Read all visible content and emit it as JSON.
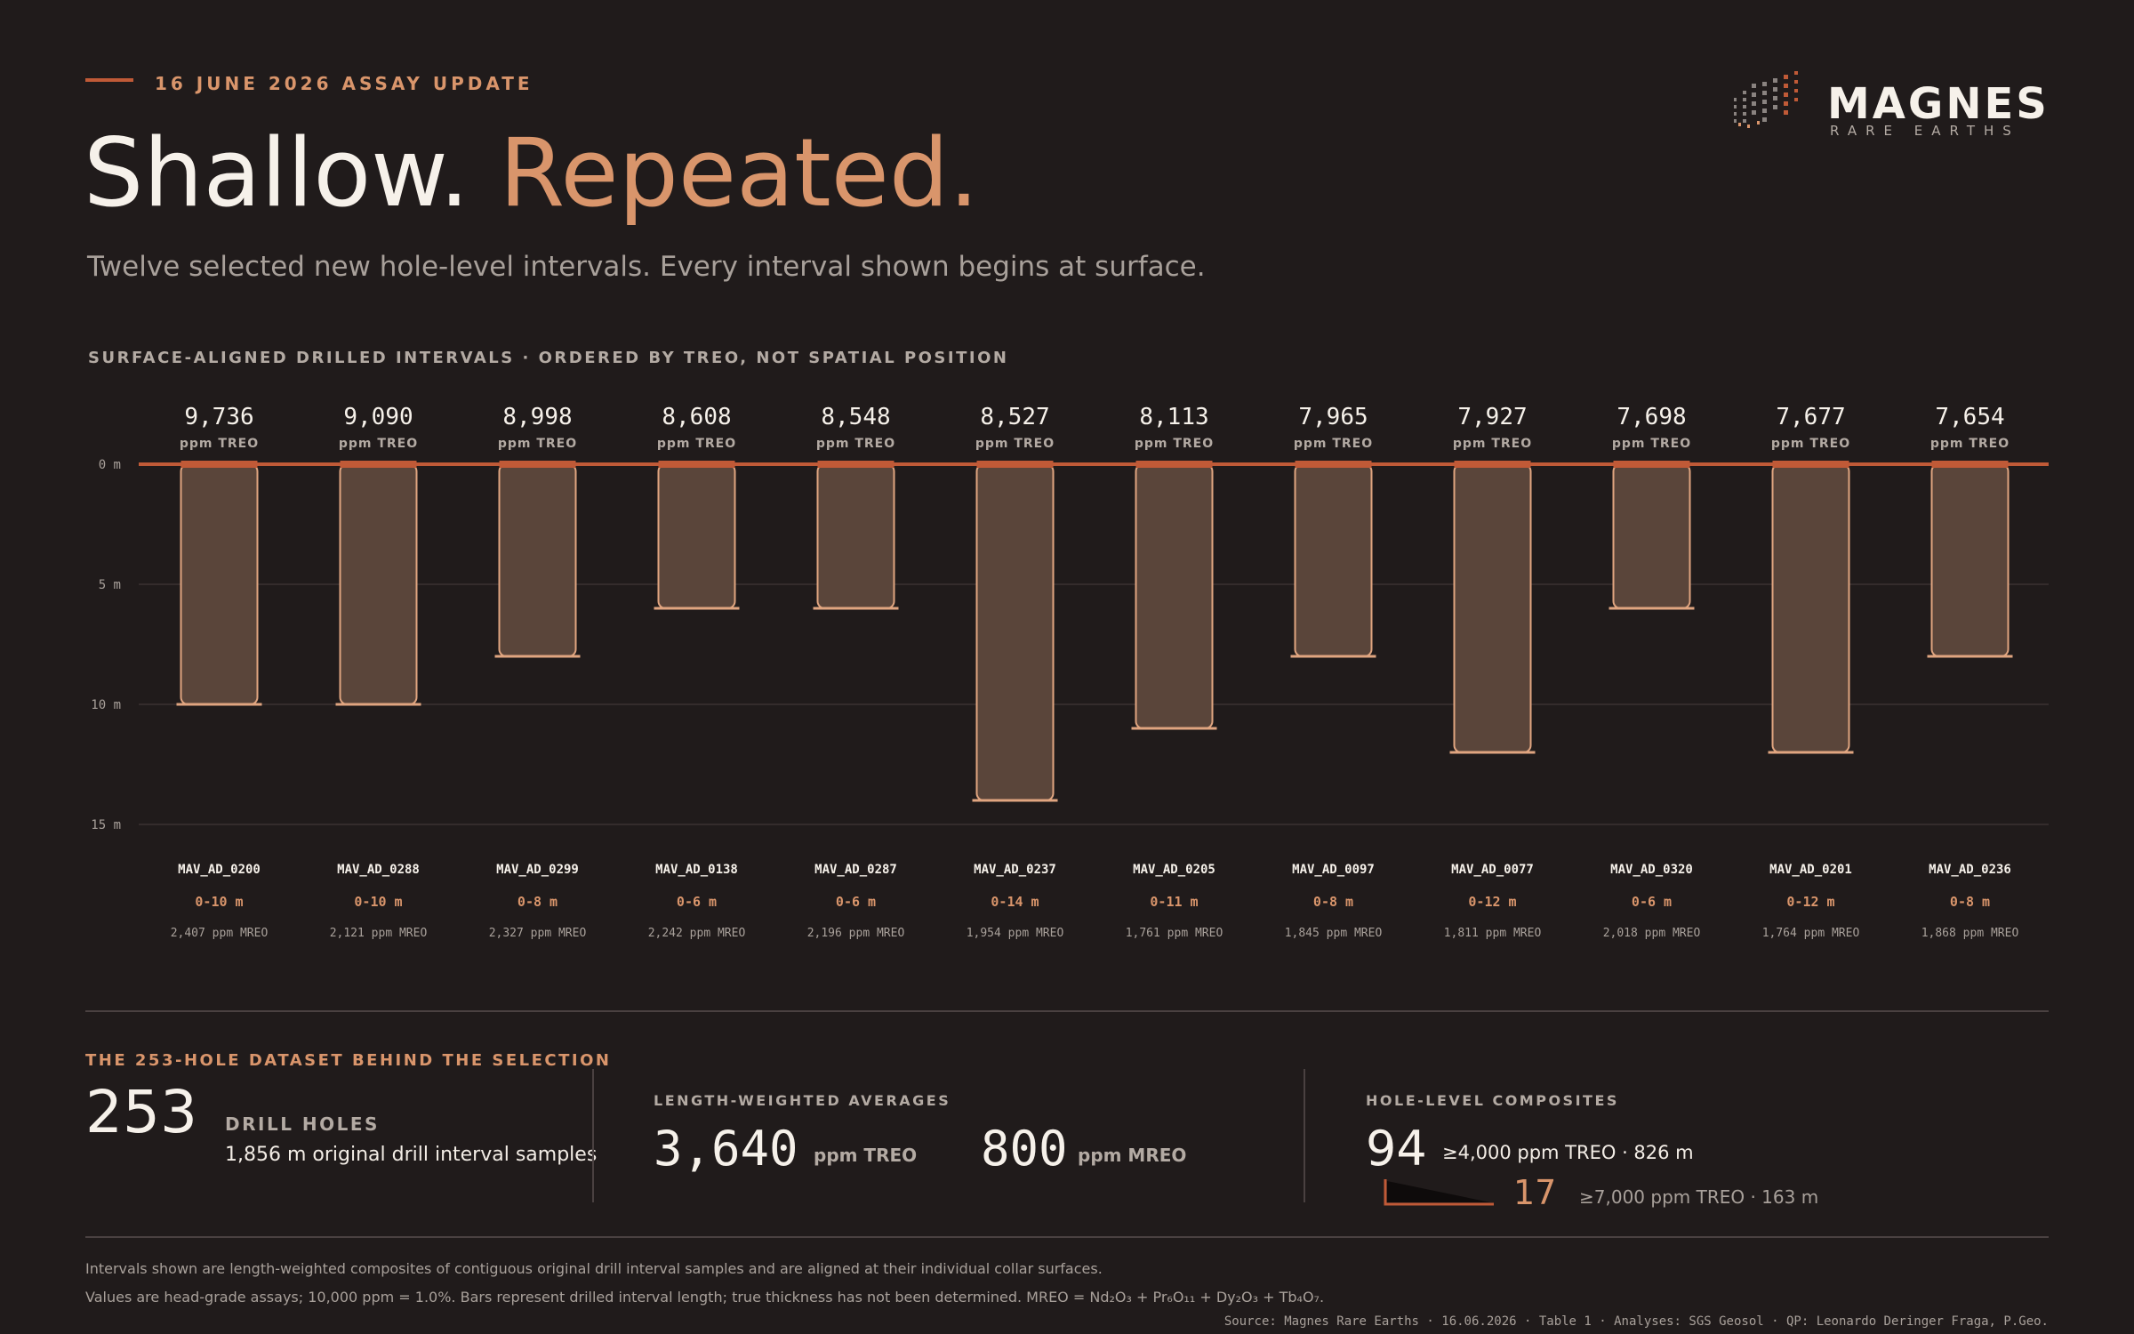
{
  "header": {
    "eyebrow": "16 JUNE 2026 ASSAY UPDATE",
    "title_part1": "Shallow.",
    "title_part2": "Repeated.",
    "subtitle": "Twelve selected new hole-level intervals. Every interval shown begins at surface."
  },
  "logo": {
    "name": "MAGNES",
    "tagline": "RARE EARTHS",
    "icon": "drill-dots-icon"
  },
  "colors": {
    "background": "#201b1b",
    "accent": "#c05a37",
    "peach": "#d9956b",
    "bar_fill": "#5a453a",
    "bar_stroke": "#e0a580"
  },
  "chart_data": {
    "type": "bar",
    "title": "SURFACE-ALIGNED DRILLED INTERVALS · ORDERED BY TREO, NOT SPATIAL POSITION",
    "orientation": "vertical-downward",
    "ylabel": "",
    "y_ticks": [
      "0 m",
      "5 m",
      "10 m",
      "15 m"
    ],
    "ylim": [
      0,
      15
    ],
    "grid": true,
    "value_unit": "ppm TREO",
    "mreo_unit": "ppm MREO",
    "holes": [
      {
        "id": "MAV_AD_0200",
        "treo": "9,736",
        "interval": "0-10 m",
        "depth": 10,
        "mreo": "2,407"
      },
      {
        "id": "MAV_AD_0288",
        "treo": "9,090",
        "interval": "0-10 m",
        "depth": 10,
        "mreo": "2,121"
      },
      {
        "id": "MAV_AD_0299",
        "treo": "8,998",
        "interval": "0-8 m",
        "depth": 8,
        "mreo": "2,327"
      },
      {
        "id": "MAV_AD_0138",
        "treo": "8,608",
        "interval": "0-6 m",
        "depth": 6,
        "mreo": "2,242"
      },
      {
        "id": "MAV_AD_0287",
        "treo": "8,548",
        "interval": "0-6 m",
        "depth": 6,
        "mreo": "2,196"
      },
      {
        "id": "MAV_AD_0237",
        "treo": "8,527",
        "interval": "0-14 m",
        "depth": 14,
        "mreo": "1,954"
      },
      {
        "id": "MAV_AD_0205",
        "treo": "8,113",
        "interval": "0-11 m",
        "depth": 11,
        "mreo": "1,761"
      },
      {
        "id": "MAV_AD_0097",
        "treo": "7,965",
        "interval": "0-8 m",
        "depth": 8,
        "mreo": "1,845"
      },
      {
        "id": "MAV_AD_0077",
        "treo": "7,927",
        "interval": "0-12 m",
        "depth": 12,
        "mreo": "1,811"
      },
      {
        "id": "MAV_AD_0320",
        "treo": "7,698",
        "interval": "0-6 m",
        "depth": 6,
        "mreo": "2,018"
      },
      {
        "id": "MAV_AD_0201",
        "treo": "7,677",
        "interval": "0-12 m",
        "depth": 12,
        "mreo": "1,764"
      },
      {
        "id": "MAV_AD_0236",
        "treo": "7,654",
        "interval": "0-8 m",
        "depth": 8,
        "mreo": "1,868"
      }
    ]
  },
  "dataset": {
    "label": "THE 253-HOLE DATASET BEHIND THE SELECTION",
    "holes_value": "253",
    "holes_label": "DRILL HOLES",
    "samples_text": "1,856 m original drill interval samples",
    "averages_label": "LENGTH-WEIGHTED AVERAGES",
    "avg_treo_value": "3,640",
    "avg_treo_unit": "ppm TREO",
    "avg_mreo_value": "800",
    "avg_mreo_unit": "ppm MREO",
    "composites_label": "HOLE-LEVEL COMPOSITES",
    "comp1_value": "94",
    "comp1_text": "≥4,000 ppm TREO · 826 m",
    "comp2_value": "17",
    "comp2_text": "≥7,000 ppm TREO · 163 m"
  },
  "footer": {
    "note1": "Intervals shown are length-weighted composites of contiguous original drill interval samples and are aligned at their individual collar surfaces.",
    "note2": "Values are head-grade assays; 10,000 ppm = 1.0%. Bars represent drilled interval length; true thickness has not been determined. MREO = Nd₂O₃ + Pr₆O₁₁ + Dy₂O₃ + Tb₄O₇.",
    "source": "Source: Magnes Rare Earths · 16.06.2026 · Table 1 · Analyses: SGS Geosol · QP: Leonardo Deringer Fraga, P.Geo."
  }
}
